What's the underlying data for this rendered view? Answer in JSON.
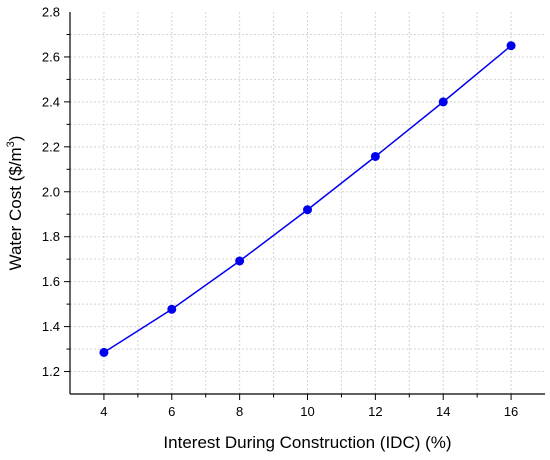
{
  "chart_data": {
    "type": "line",
    "xlabel": "Interest During Construction (IDC) (%)",
    "ylabel": "Water Cost ($/m",
    "ylabel_superscript": "3",
    "ylabel_suffix": ")",
    "xlim": [
      3,
      17
    ],
    "ylim": [
      1.1,
      2.8
    ],
    "x_ticks": [
      4,
      6,
      8,
      10,
      12,
      14,
      16
    ],
    "y_ticks": [
      1.2,
      1.4,
      1.6,
      1.8,
      2.0,
      2.2,
      2.4,
      2.6,
      2.8
    ],
    "y_tick_labels": [
      "1.2",
      "1.4",
      "1.6",
      "1.8",
      "2.0",
      "2.2",
      "2.4",
      "2.6",
      "2.8"
    ],
    "grid": true,
    "series": [
      {
        "x": [
          4,
          6,
          8,
          10,
          12,
          14,
          16
        ],
        "values": [
          1.285,
          1.477,
          1.692,
          1.92,
          2.157,
          2.4,
          2.65
        ],
        "color": "#0000ee"
      }
    ]
  }
}
